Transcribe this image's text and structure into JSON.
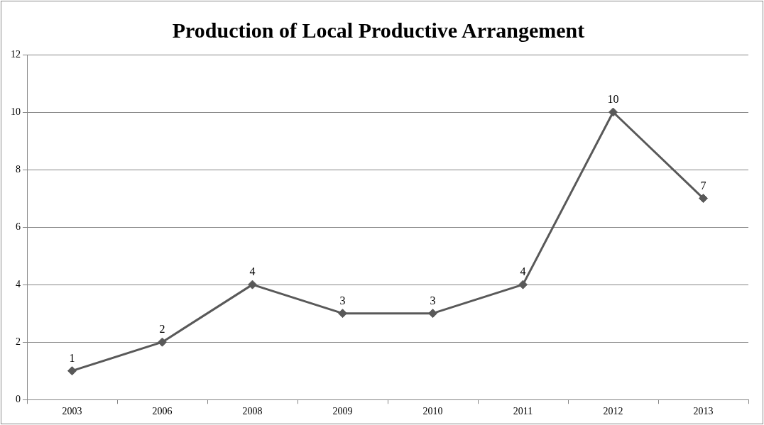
{
  "chart_data": {
    "type": "line",
    "title": "Production of Local Productive Arrangement",
    "categories": [
      "2003",
      "2006",
      "2008",
      "2009",
      "2010",
      "2011",
      "2012",
      "2013"
    ],
    "series": [
      {
        "color": "#595959",
        "values": [
          1,
          2,
          4,
          3,
          3,
          4,
          10,
          7
        ]
      }
    ],
    "ylim": [
      0,
      12
    ],
    "yticks": [
      0,
      2,
      4,
      6,
      8,
      10,
      12
    ],
    "grid": "y",
    "legend": false,
    "marker": "diamond",
    "line_style": "solid",
    "data_labels": true
  }
}
